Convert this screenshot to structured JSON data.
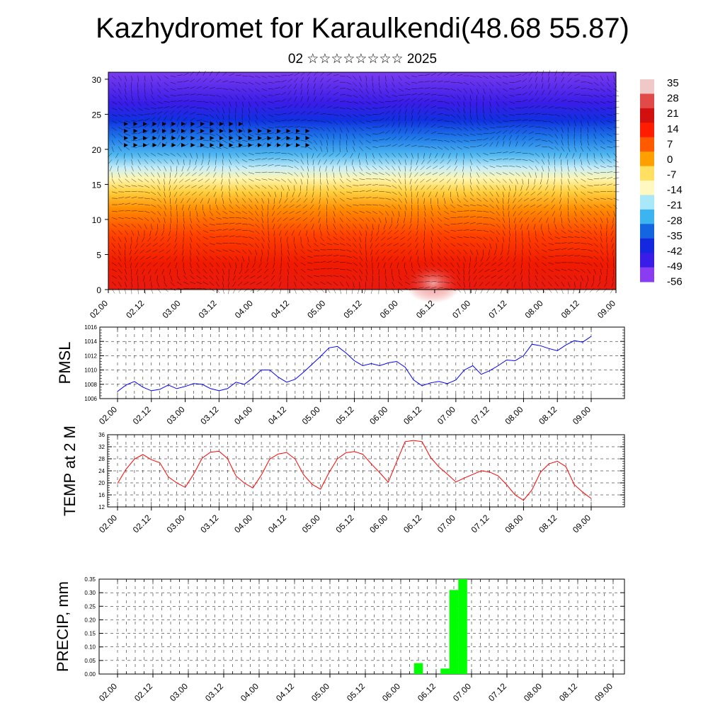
{
  "title": "Kazhydromet for Karaulkendi(48.68 55.87)",
  "subtitle": "02 ☆☆☆☆☆☆☆☆ 2025",
  "colors": {
    "pmsl_line": "#0000ff",
    "temp_line": "#ff0000",
    "precip_bar": "#00ff00"
  },
  "chart_data": [
    {
      "type": "heatmap",
      "name": "vertical-section",
      "x_ticks": [
        "02.00",
        "02.12",
        "03.00",
        "03.12",
        "04.00",
        "04.12",
        "05.00",
        "05.12",
        "06.00",
        "06.12",
        "07.00",
        "07.12",
        "08.00",
        "08.12",
        "09.00"
      ],
      "y_ticks": [
        0,
        5,
        10,
        15,
        20,
        25,
        30
      ],
      "ylim": [
        0,
        31
      ],
      "colorbar_labels": [
        "35",
        "28",
        "21",
        "14",
        "7",
        "0",
        "-7",
        "-14",
        "-21",
        "-28",
        "-35",
        "-42",
        "-49",
        "-56"
      ],
      "colorbar_colors": [
        "#f0c8c8",
        "#e24a4a",
        "#d21010",
        "#ff1c00",
        "#ff5a00",
        "#ffa000",
        "#ffe060",
        "#fff8c0",
        "#a8e8f8",
        "#3cb4f0",
        "#1466e0",
        "#1428e0",
        "#3a1ce8",
        "#8a3cf0"
      ],
      "overlay": "wind-vectors"
    },
    {
      "type": "line",
      "name": "pmsl",
      "ylabel": "PMSL",
      "ylim": [
        1006,
        1016
      ],
      "y_ticks": [
        1006,
        1008,
        1010,
        1012,
        1014,
        1016
      ],
      "x_ticks": [
        "02.00",
        "02.12",
        "03.00",
        "03.12",
        "04.00",
        "04.12",
        "05.00",
        "05.12",
        "06.00",
        "06.12",
        "07.00",
        "07.12",
        "08.00",
        "08.12",
        "09.00"
      ],
      "x": [
        0,
        0.25,
        0.5,
        0.75,
        1,
        1.25,
        1.5,
        1.75,
        2,
        2.25,
        2.5,
        2.75,
        3,
        3.25,
        3.5,
        3.75,
        4,
        4.25,
        4.5,
        4.75,
        5,
        5.25,
        5.5,
        5.75,
        6,
        6.25,
        6.5,
        6.75,
        7,
        7.25,
        7.5,
        7.75,
        8,
        8.25,
        8.5,
        8.75,
        9,
        9.25,
        9.5,
        9.75,
        10,
        10.25,
        10.5,
        10.75,
        11,
        11.25,
        11.5,
        11.75,
        12,
        12.25,
        12.5,
        12.75,
        13,
        13.25,
        13.5,
        13.75,
        14
      ],
      "values": [
        1007.0,
        1007.9,
        1008.4,
        1007.6,
        1007.1,
        1007.3,
        1007.9,
        1007.4,
        1007.7,
        1008.1,
        1008.0,
        1007.4,
        1007.1,
        1007.4,
        1008.3,
        1008.0,
        1008.9,
        1010.0,
        1010.0,
        1009.0,
        1008.3,
        1008.7,
        1009.7,
        1010.8,
        1011.9,
        1013.1,
        1013.3,
        1012.4,
        1011.3,
        1010.6,
        1010.9,
        1010.6,
        1011.0,
        1011.2,
        1010.4,
        1008.6,
        1007.8,
        1008.2,
        1008.4,
        1008.1,
        1008.6,
        1010.0,
        1010.6,
        1009.4,
        1009.9,
        1010.6,
        1011.4,
        1011.3,
        1012.0,
        1013.6,
        1013.4,
        1013.0,
        1012.7,
        1013.5,
        1014.1,
        1013.9,
        1014.7
      ]
    },
    {
      "type": "line",
      "name": "temp2m",
      "ylabel": "TEMP at 2 M",
      "ylim": [
        12,
        36
      ],
      "y_ticks": [
        12,
        16,
        20,
        24,
        28,
        32,
        36
      ],
      "x_ticks": [
        "02.00",
        "02.12",
        "03.00",
        "03.12",
        "04.00",
        "04.12",
        "05.00",
        "05.12",
        "06.00",
        "06.12",
        "07.00",
        "07.12",
        "08.00",
        "08.12",
        "09.00"
      ],
      "x": [
        0,
        0.25,
        0.5,
        0.75,
        1,
        1.25,
        1.5,
        1.75,
        2,
        2.25,
        2.5,
        2.75,
        3,
        3.25,
        3.5,
        3.75,
        4,
        4.25,
        4.5,
        4.75,
        5,
        5.25,
        5.5,
        5.75,
        6,
        6.25,
        6.5,
        6.75,
        7,
        7.25,
        7.5,
        7.75,
        8,
        8.25,
        8.5,
        8.75,
        9,
        9.25,
        9.5,
        9.75,
        10,
        10.25,
        10.5,
        10.75,
        11,
        11.25,
        11.5,
        11.75,
        12,
        12.25,
        12.5,
        12.75,
        13,
        13.25,
        13.5,
        13.75,
        14
      ],
      "values": [
        19.8,
        24.5,
        27.9,
        29.4,
        27.7,
        26.7,
        22.0,
        20.0,
        18.5,
        22.9,
        28.2,
        30.2,
        30.5,
        28.1,
        22.3,
        19.9,
        18.3,
        22.6,
        27.9,
        29.6,
        30.1,
        27.9,
        22.7,
        19.5,
        17.9,
        23.4,
        28.0,
        30.0,
        30.4,
        29.5,
        26.3,
        23.4,
        20.2,
        27.0,
        33.7,
        34.1,
        33.7,
        28.5,
        25.3,
        22.9,
        20.3,
        21.6,
        22.8,
        24.0,
        23.6,
        22.3,
        19.4,
        16.0,
        14.2,
        17.7,
        23.5,
        26.3,
        27.2,
        25.4,
        19.4,
        16.9,
        14.8
      ]
    },
    {
      "type": "bar",
      "name": "precip",
      "ylabel": "PRECIP, mm",
      "ylim": [
        0,
        0.35
      ],
      "y_ticks": [
        "0.00",
        "0.05",
        "0.10",
        "0.15",
        "0.20",
        "0.25",
        "0.30",
        "0.35"
      ],
      "x_ticks": [
        "02.00",
        "02.12",
        "03.00",
        "03.12",
        "04.00",
        "04.12",
        "05.00",
        "05.12",
        "06.00",
        "06.12",
        "07.00",
        "07.12",
        "08.00",
        "08.12",
        "09.00"
      ],
      "bars": [
        {
          "x": 8.5,
          "value": 0.04
        },
        {
          "x": 9.25,
          "value": 0.02
        },
        {
          "x": 9.5,
          "value": 0.31
        },
        {
          "x": 9.75,
          "value": 0.35
        }
      ]
    }
  ]
}
